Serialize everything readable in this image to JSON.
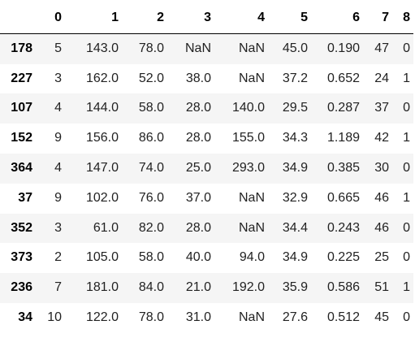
{
  "table": {
    "columns": [
      "",
      "0",
      "1",
      "2",
      "3",
      "4",
      "5",
      "6",
      "7",
      "8"
    ],
    "rows": [
      {
        "index": "178",
        "cells": [
          "5",
          "143.0",
          "78.0",
          "NaN",
          "NaN",
          "45.0",
          "0.190",
          "47",
          "0"
        ]
      },
      {
        "index": "227",
        "cells": [
          "3",
          "162.0",
          "52.0",
          "38.0",
          "NaN",
          "37.2",
          "0.652",
          "24",
          "1"
        ]
      },
      {
        "index": "107",
        "cells": [
          "4",
          "144.0",
          "58.0",
          "28.0",
          "140.0",
          "29.5",
          "0.287",
          "37",
          "0"
        ]
      },
      {
        "index": "152",
        "cells": [
          "9",
          "156.0",
          "86.0",
          "28.0",
          "155.0",
          "34.3",
          "1.189",
          "42",
          "1"
        ]
      },
      {
        "index": "364",
        "cells": [
          "4",
          "147.0",
          "74.0",
          "25.0",
          "293.0",
          "34.9",
          "0.385",
          "30",
          "0"
        ]
      },
      {
        "index": "37",
        "cells": [
          "9",
          "102.0",
          "76.0",
          "37.0",
          "NaN",
          "32.9",
          "0.665",
          "46",
          "1"
        ]
      },
      {
        "index": "352",
        "cells": [
          "3",
          "61.0",
          "82.0",
          "28.0",
          "NaN",
          "34.4",
          "0.243",
          "46",
          "0"
        ]
      },
      {
        "index": "373",
        "cells": [
          "2",
          "105.0",
          "58.0",
          "40.0",
          "94.0",
          "34.9",
          "0.225",
          "25",
          "0"
        ]
      },
      {
        "index": "236",
        "cells": [
          "7",
          "181.0",
          "84.0",
          "21.0",
          "192.0",
          "35.9",
          "0.586",
          "51",
          "1"
        ]
      },
      {
        "index": "34",
        "cells": [
          "10",
          "122.0",
          "78.0",
          "31.0",
          "NaN",
          "27.6",
          "0.512",
          "45",
          "0"
        ]
      }
    ]
  },
  "colors": {
    "header_text": "#000000",
    "cell_text": "#222222",
    "row_stripe": "#f5f5f5",
    "background": "#ffffff"
  }
}
